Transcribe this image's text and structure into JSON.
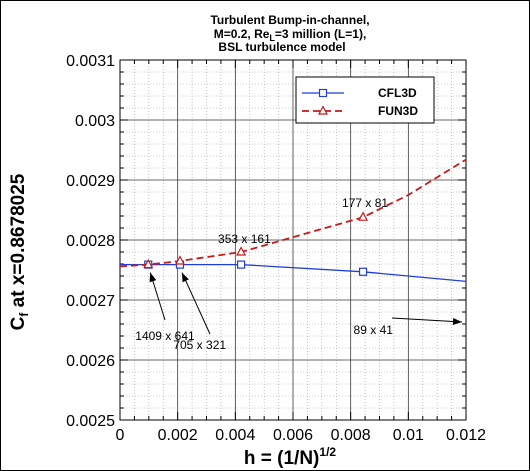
{
  "chart_data": {
    "type": "line",
    "title_lines": [
      "Turbulent Bump-in-channel,",
      "M=0.2, Re",
      "L",
      "=3 million (L=1),",
      "BSL turbulence model"
    ],
    "xlabel": {
      "main": "h = (1/N)",
      "sup": "1/2"
    },
    "ylabel": {
      "main": "C",
      "sub": "f",
      "rest": " at x=0.8678025"
    },
    "xlim": [
      0,
      0.012
    ],
    "ylim": [
      0.0025,
      0.0031
    ],
    "x_ticks": [
      0,
      0.002,
      0.004,
      0.006,
      0.008,
      0.01,
      0.012
    ],
    "x_tick_labels": [
      "0",
      "0.002",
      "0.004",
      "0.006",
      "0.008",
      "0.01",
      "0.012"
    ],
    "y_ticks": [
      0.0025,
      0.0026,
      0.0027,
      0.0028,
      0.0029,
      0.003,
      0.0031
    ],
    "y_tick_labels": [
      "0.0025",
      "0.0026",
      "0.0027",
      "0.0028",
      "0.0029",
      "0.003",
      "0.0031"
    ],
    "grid": true,
    "legend_position": "top-right",
    "series": [
      {
        "name": "CFL3D",
        "color": "#1f3fd8",
        "marker": "square",
        "line_style": "solid",
        "x": [
          0.00098,
          0.00208,
          0.0042,
          0.00843
        ],
        "y": [
          0.002759,
          0.002759,
          0.002759,
          0.002747
        ],
        "trend_x": [
          0.0,
          0.00098,
          0.00208,
          0.0042,
          0.00843,
          0.012
        ],
        "trend_y": [
          0.002759,
          0.002759,
          0.002759,
          0.002759,
          0.002747,
          0.002731
        ]
      },
      {
        "name": "FUN3D",
        "color": "#c81818",
        "marker": "triangle",
        "line_style": "dashed",
        "x": [
          0.00098,
          0.00208,
          0.0042,
          0.00843
        ],
        "y": [
          0.002759,
          0.002765,
          0.00278,
          0.002838
        ],
        "trend_x": [
          0.0,
          0.00098,
          0.00208,
          0.0042,
          0.00843,
          0.01,
          0.012
        ],
        "trend_y": [
          0.002756,
          0.002759,
          0.002765,
          0.00278,
          0.002838,
          0.002875,
          0.002934
        ]
      }
    ],
    "annotations": [
      {
        "text": "177 x 81",
        "x": 0.0077,
        "y": 0.002855
      },
      {
        "text": "353 x 161",
        "x": 0.0034,
        "y": 0.002795
      },
      {
        "text": "1409 x 641",
        "x": 0.00053,
        "y": 0.002633
      },
      {
        "text": "705 x 321",
        "x": 0.00185,
        "y": 0.002618
      },
      {
        "text": "89 x 41",
        "x": 0.0081,
        "y": 0.002643
      }
    ]
  }
}
